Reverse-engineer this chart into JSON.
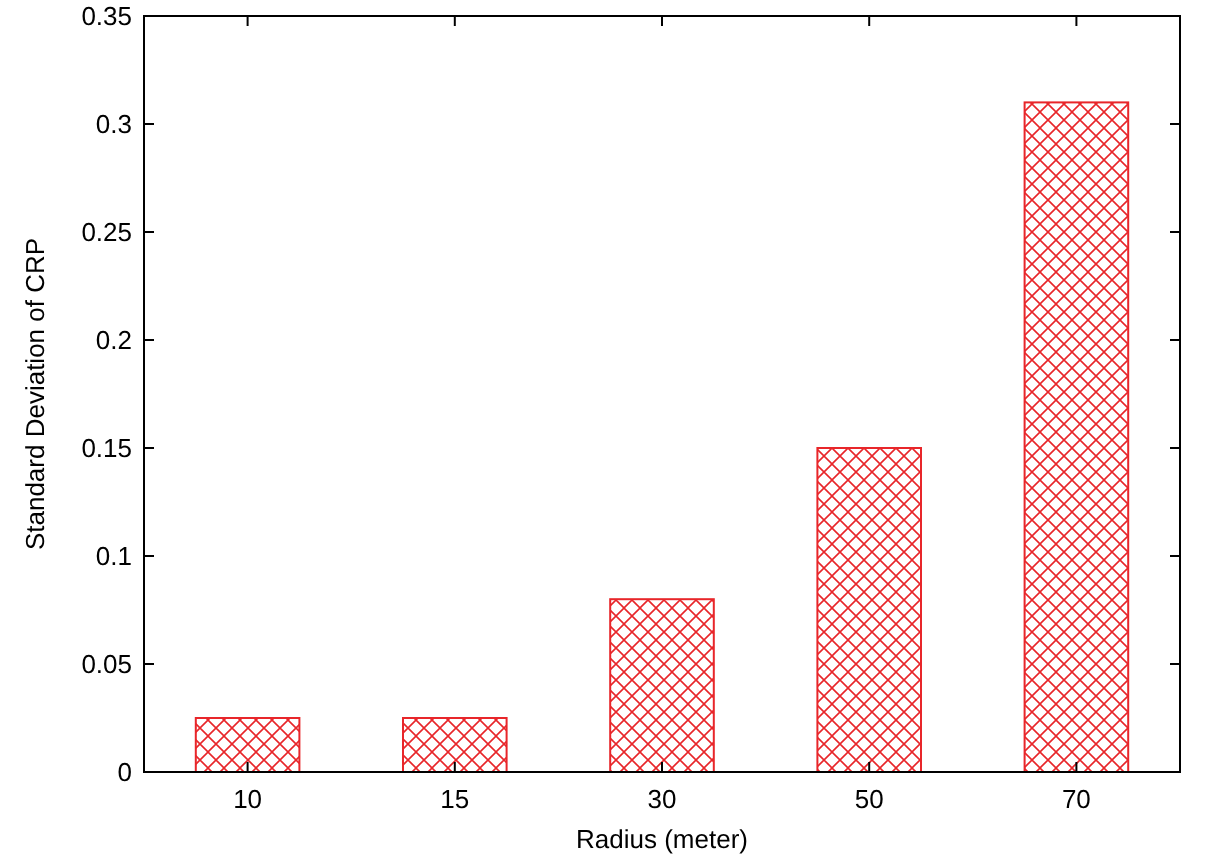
{
  "chart_data": {
    "type": "bar",
    "xlabel": "Radius (meter)",
    "ylabel": "Standard Deviation of CRP",
    "categories": [
      "10",
      "15",
      "30",
      "50",
      "70"
    ],
    "values": [
      0.025,
      0.025,
      0.08,
      0.15,
      0.31
    ],
    "color": "#e8262a",
    "ylim": [
      0,
      0.35
    ],
    "yticks": [
      0,
      0.05,
      0.1,
      0.15,
      0.2,
      0.25,
      0.3,
      0.35
    ],
    "grid": false
  }
}
